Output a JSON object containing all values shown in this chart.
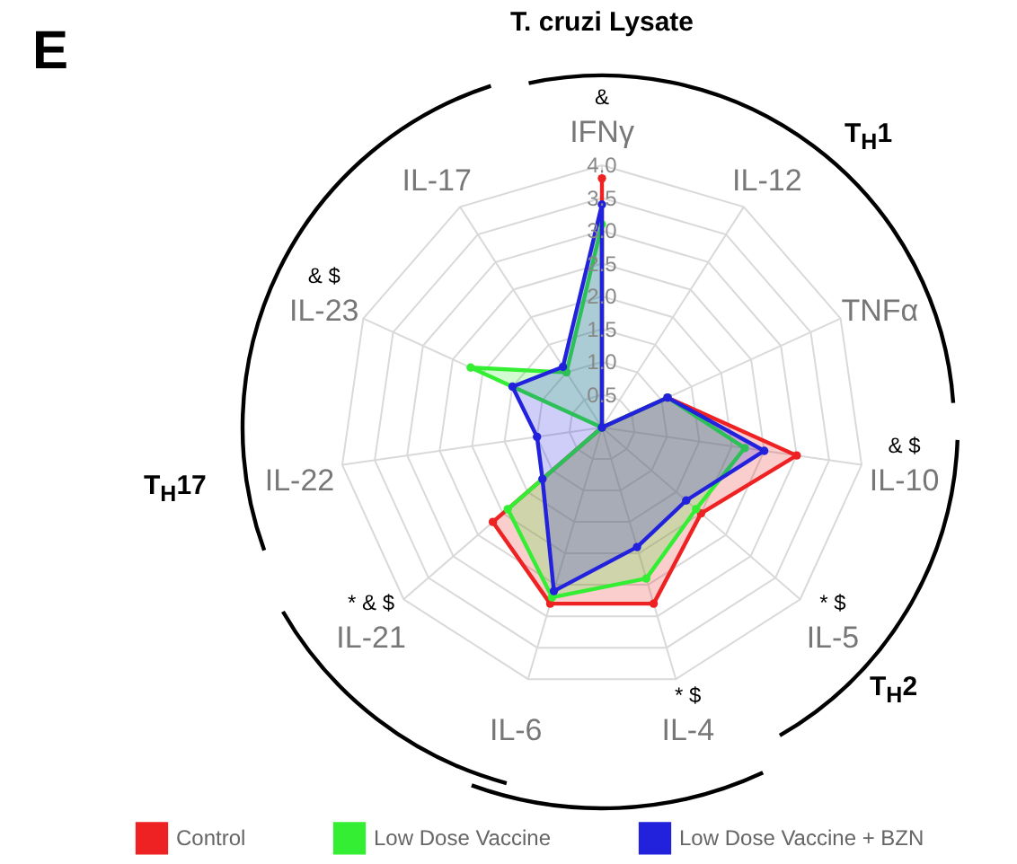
{
  "chart_data": {
    "type": "radar",
    "title": "T. cruzi Lysate",
    "categories": [
      "IFNγ",
      "IL-12",
      "TNFα",
      "IL-10",
      "IL-5",
      "IL-4",
      "IL-6",
      "IL-21",
      "IL-22",
      "IL-23",
      "IL-17"
    ],
    "series": [
      {
        "name": "Control",
        "color": "#ee2222",
        "values": [
          3.8,
          0,
          1.1,
          3.0,
          2.0,
          2.8,
          2.8,
          2.2,
          0,
          0,
          0
        ]
      },
      {
        "name": "Low Dose Vaccine",
        "color": "#33ee33",
        "values": [
          3.1,
          0,
          1.1,
          2.2,
          1.9,
          2.4,
          2.7,
          1.9,
          0,
          2.2,
          1.0
        ]
      },
      {
        "name": "Low Dose Vaccine + BZN",
        "color": "#2222dd",
        "values": [
          3.4,
          0,
          1.1,
          2.5,
          1.7,
          1.9,
          2.6,
          1.2,
          1.0,
          1.5,
          1.1
        ]
      }
    ],
    "ylim": [
      0,
      4
    ],
    "yticks": [
      0.5,
      {
        "value": 1,
        "label": "1.0"
      },
      1.5,
      {
        "value": 2,
        "label": "2.0"
      },
      2.5,
      {
        "value": 3,
        "label": "3.0"
      },
      3.5,
      {
        "value": 4,
        "label": "4.0"
      }
    ],
    "grid": true,
    "legend": "bottom",
    "marker": "circle",
    "annotations": [
      "E",
      "T$_{H}$1",
      "T$_{H}$17",
      "T$_{H}$2",
      {
        "text": "&",
        "x": "IFNγ"
      },
      {
        "text": "& $",
        "x": "IL-10"
      },
      {
        "text": "* $",
        "x": "IL-5"
      },
      {
        "text": "* $",
        "x": "IL-4"
      },
      {
        "text": "* & $",
        "x": "IL-21"
      },
      {
        "text": "& $",
        "x": "IL-23"
      }
    ]
  }
}
